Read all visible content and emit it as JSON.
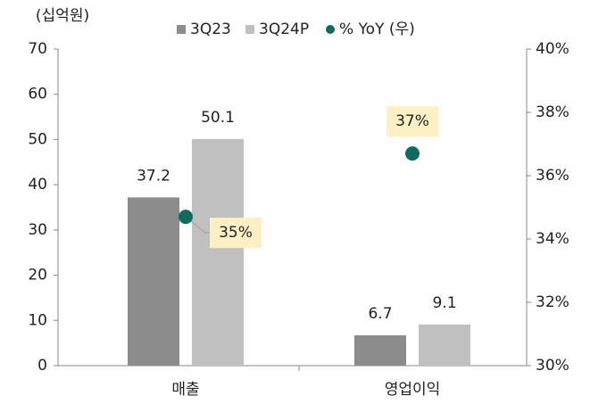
{
  "chart_data": {
    "type": "bar",
    "y_label": "(십억원)",
    "categories": [
      "매출",
      "영업이익"
    ],
    "series": [
      {
        "name": "3Q23",
        "color": "#8c8c8c",
        "values": [
          37.2,
          6.7
        ]
      },
      {
        "name": "3Q24P",
        "color": "#c0c0c0",
        "values": [
          50.1,
          9.1
        ]
      },
      {
        "name": "% YoY (우)",
        "type": "scatter",
        "axis": "y2",
        "color": "#0f6b5c",
        "values": [
          34.7,
          36.7
        ],
        "value_labels": [
          "35%",
          "37%"
        ]
      }
    ],
    "ylim": [
      0,
      70
    ],
    "yticks": [
      0,
      10,
      20,
      30,
      40,
      50,
      60,
      70
    ],
    "y2lim": [
      30,
      40
    ],
    "y2ticks": [
      {
        "value": 30,
        "label": "30%"
      },
      {
        "value": 32,
        "label": "32%"
      },
      {
        "value": 34,
        "label": "34%"
      },
      {
        "value": 36,
        "label": "36%"
      },
      {
        "value": 38,
        "label": "38%"
      },
      {
        "value": 40,
        "label": "40%"
      }
    ],
    "legend": "top"
  }
}
